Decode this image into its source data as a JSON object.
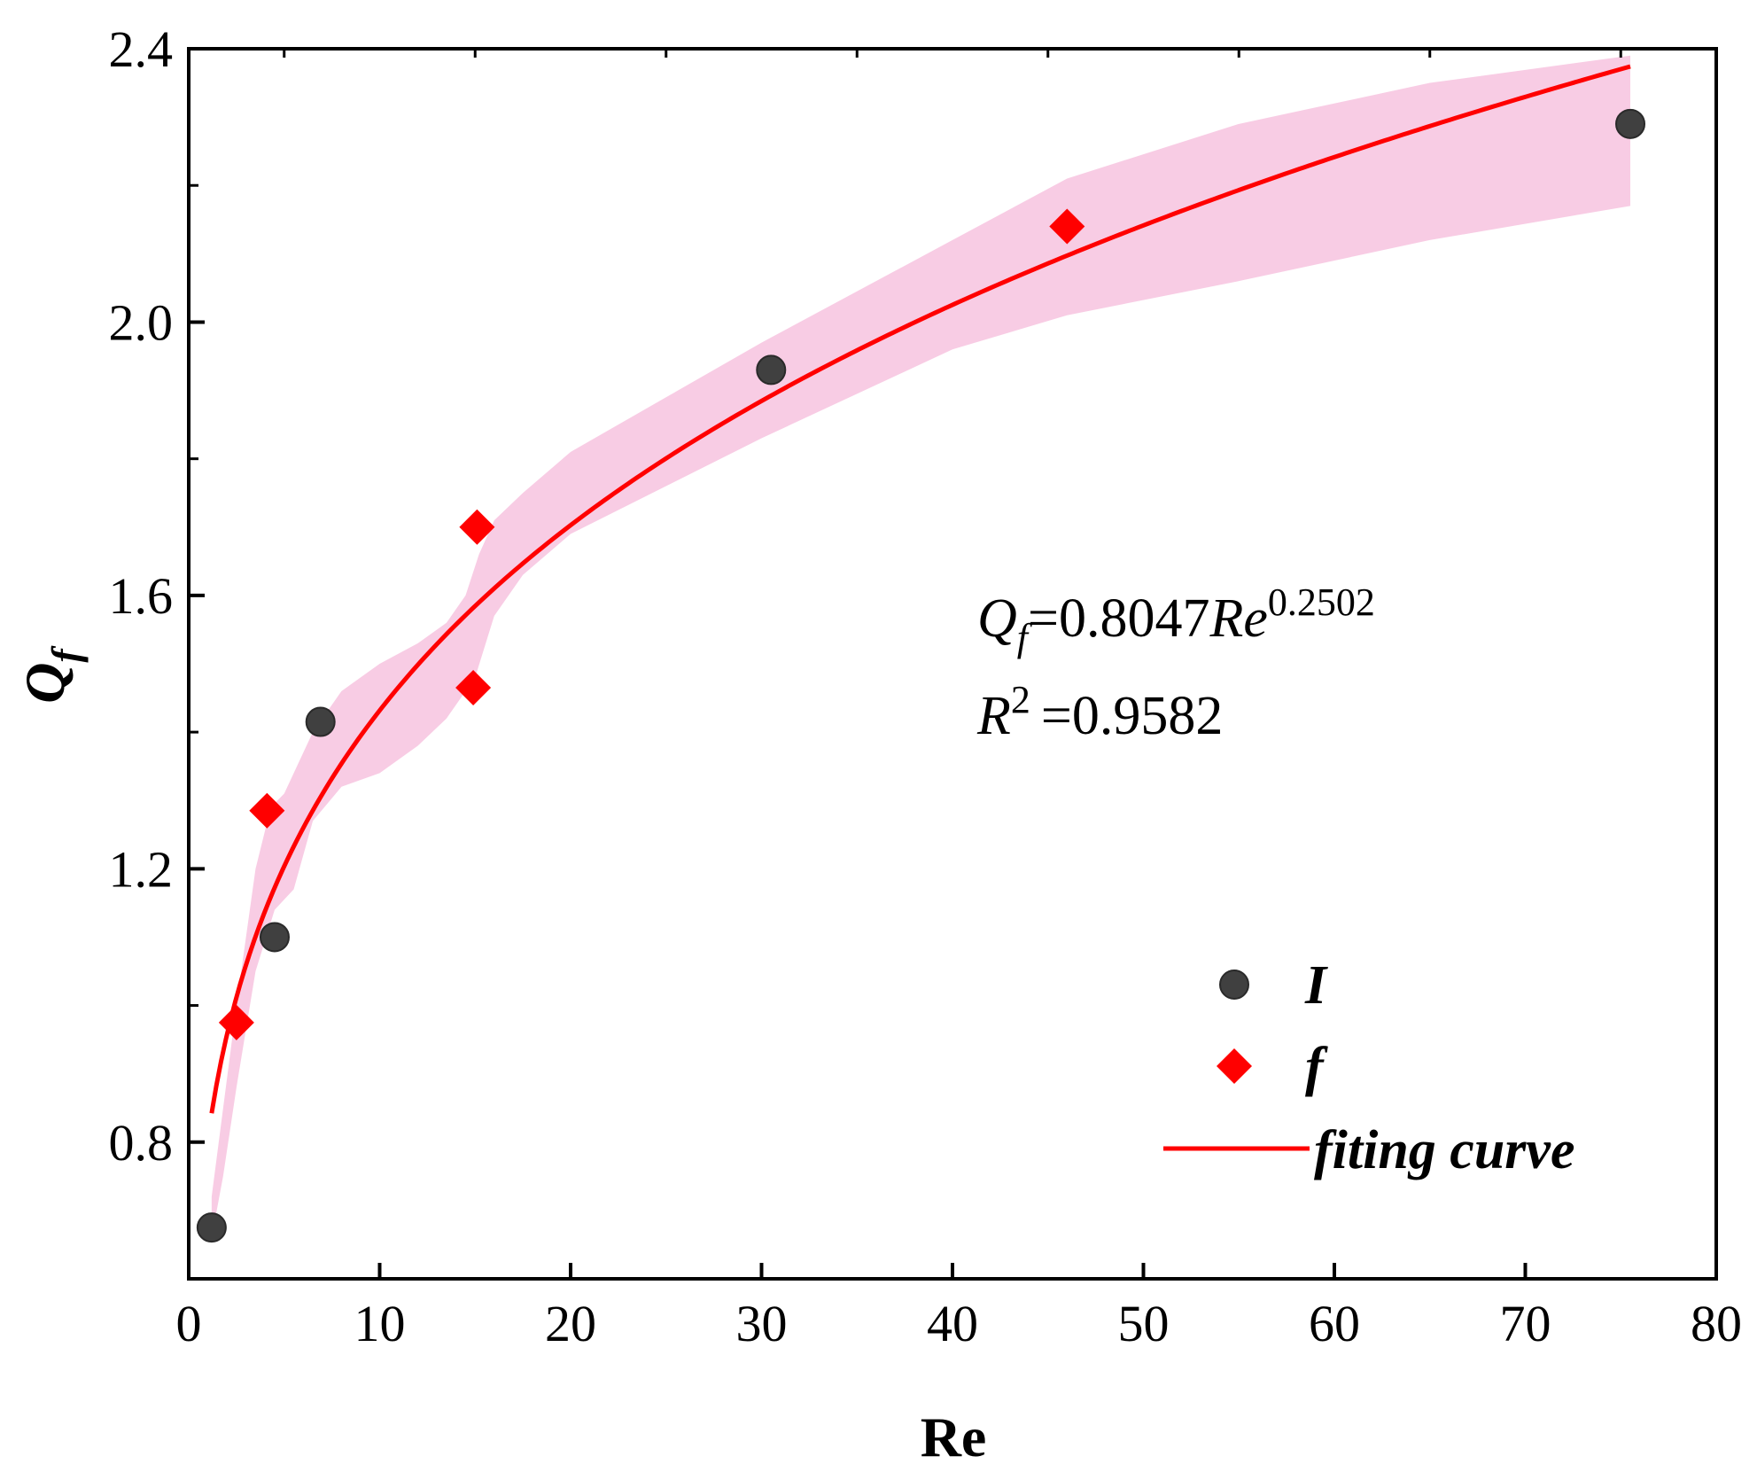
{
  "chart_data": {
    "type": "scatter",
    "title": "",
    "xlabel": "Re",
    "ylabel": {
      "main": "Q",
      "sub": "f"
    },
    "xlim": [
      0,
      80
    ],
    "ylim": [
      0.6,
      2.4
    ],
    "x_ticks": [
      0,
      10,
      20,
      30,
      40,
      50,
      60,
      70,
      80
    ],
    "x_tick_labels": [
      "0",
      "10",
      "20",
      "30",
      "40",
      "50",
      "60",
      "70",
      "80"
    ],
    "y_ticks": [
      0.8,
      1.2,
      1.6,
      2.0,
      2.4
    ],
    "y_tick_labels": [
      "0.8",
      "1.2",
      "1.6",
      "2.0",
      "2.4"
    ],
    "y_minor_ticks": [
      1.0,
      1.4,
      1.8,
      2.2
    ],
    "grid": false,
    "legend_position": "bottom-right",
    "series": [
      {
        "name": "I",
        "marker": "circle",
        "color": "#404040",
        "points": [
          {
            "x": 1.2,
            "y": 0.675
          },
          {
            "x": 4.5,
            "y": 1.1
          },
          {
            "x": 6.9,
            "y": 1.415
          },
          {
            "x": 30.5,
            "y": 1.93
          },
          {
            "x": 75.5,
            "y": 2.29
          }
        ]
      },
      {
        "name": "f",
        "marker": "diamond",
        "color": "#ff0000",
        "points": [
          {
            "x": 2.5,
            "y": 0.975
          },
          {
            "x": 4.1,
            "y": 1.285
          },
          {
            "x": 14.9,
            "y": 1.465
          },
          {
            "x": 15.1,
            "y": 1.7
          },
          {
            "x": 46.0,
            "y": 2.14
          }
        ]
      },
      {
        "name": "fiting curve",
        "type": "line",
        "color": "#ff0000",
        "model": {
          "a": 0.8047,
          "b": 0.2502
        },
        "x_range": [
          1.2,
          75.5
        ]
      }
    ],
    "confidence_band": {
      "color": "#f8cce4",
      "upper": [
        [
          1.2,
          0.72
        ],
        [
          2.5,
          1.0
        ],
        [
          3.5,
          1.2
        ],
        [
          4.3,
          1.29
        ],
        [
          5.0,
          1.31
        ],
        [
          6.5,
          1.4
        ],
        [
          8.0,
          1.46
        ],
        [
          10.0,
          1.5
        ],
        [
          12.0,
          1.53
        ],
        [
          13.5,
          1.56
        ],
        [
          14.5,
          1.6
        ],
        [
          15.2,
          1.66
        ],
        [
          16.0,
          1.71
        ],
        [
          17.5,
          1.75
        ],
        [
          20.0,
          1.81
        ],
        [
          25.0,
          1.89
        ],
        [
          30.0,
          1.97
        ],
        [
          40.0,
          2.12
        ],
        [
          46.0,
          2.21
        ],
        [
          55.0,
          2.29
        ],
        [
          65.0,
          2.35
        ],
        [
          75.5,
          2.39
        ]
      ],
      "lower": [
        [
          75.5,
          2.17
        ],
        [
          65.0,
          2.12
        ],
        [
          55.0,
          2.06
        ],
        [
          46.0,
          2.01
        ],
        [
          40.0,
          1.96
        ],
        [
          30.0,
          1.83
        ],
        [
          25.0,
          1.76
        ],
        [
          20.0,
          1.69
        ],
        [
          17.5,
          1.63
        ],
        [
          16.0,
          1.57
        ],
        [
          15.0,
          1.48
        ],
        [
          13.5,
          1.42
        ],
        [
          12.0,
          1.38
        ],
        [
          10.0,
          1.34
        ],
        [
          8.0,
          1.32
        ],
        [
          6.5,
          1.27
        ],
        [
          5.5,
          1.17
        ],
        [
          4.5,
          1.14
        ],
        [
          3.5,
          1.05
        ],
        [
          2.5,
          0.88
        ],
        [
          1.8,
          0.75
        ],
        [
          1.2,
          0.66
        ]
      ]
    },
    "annotation": {
      "equation": {
        "lhs_main": "Q",
        "lhs_sub": "f",
        "eq": "=0.8047",
        "var": "Re",
        "exponent": "0.2502"
      },
      "r2": {
        "main": "R",
        "sup": "2",
        "eq": "=0.9582"
      }
    }
  }
}
